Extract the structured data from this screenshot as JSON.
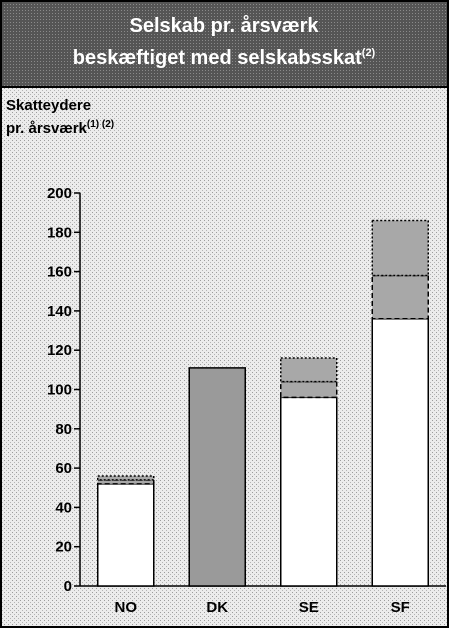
{
  "chart_data": {
    "type": "stacked_bar",
    "title_lines": [
      "Selskab pr. årsværk",
      "beskæftiget med selskabsskat"
    ],
    "title_sup": "(2)",
    "ylabel_lines": [
      "Skatteydere",
      "pr. årsværk"
    ],
    "ylabel_sup": "(1) (2)",
    "categories": [
      "NO",
      "DK",
      "SE",
      "SF"
    ],
    "series": [
      {
        "color": "#ffffff",
        "border": "solid",
        "values": [
          52,
          null,
          96,
          136
        ]
      },
      {
        "color": "#9a9a9a",
        "border": "solid",
        "values": [
          null,
          111,
          null,
          null
        ]
      },
      {
        "color": "#a8a8a8",
        "border": "dashed",
        "values": [
          2,
          null,
          8,
          22
        ]
      },
      {
        "color": "#a8a8a8",
        "border": "dotted",
        "values": [
          2,
          null,
          12,
          28
        ]
      }
    ],
    "ylim": [
      0,
      200
    ],
    "yticks": [
      0,
      20,
      40,
      60,
      80,
      100,
      120,
      140,
      160,
      180,
      200
    ]
  }
}
